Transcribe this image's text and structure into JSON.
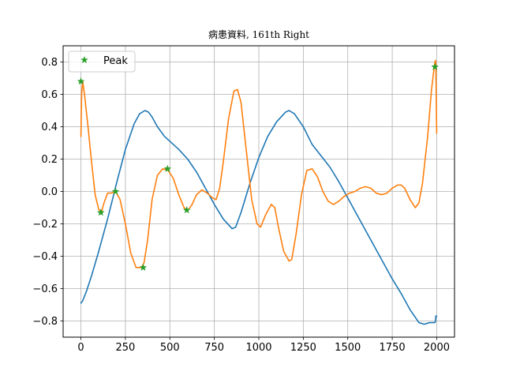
{
  "chart_data": {
    "type": "line",
    "title": "病患資料, 161th Right",
    "xlabel": "",
    "ylabel": "",
    "xlim": [
      -100,
      2100
    ],
    "ylim": [
      -0.9,
      0.9
    ],
    "xticks": [
      0,
      250,
      500,
      750,
      1000,
      1250,
      1500,
      1750,
      2000
    ],
    "yticks": [
      -0.8,
      -0.6,
      -0.4,
      -0.2,
      0.0,
      0.2,
      0.4,
      0.6,
      0.8
    ],
    "xtick_labels": [
      "0",
      "250",
      "500",
      "750",
      "1000",
      "1250",
      "1500",
      "1750",
      "2000"
    ],
    "ytick_labels": [
      "−0.8",
      "−0.6",
      "−0.4",
      "−0.2",
      "0.0",
      "0.2",
      "0.4",
      "0.6",
      "0.8"
    ],
    "grid": true,
    "legend_position": "top-left",
    "series": [
      {
        "color": "#1f77b4",
        "x": [
          0,
          10,
          30,
          60,
          100,
          150,
          200,
          250,
          300,
          330,
          360,
          380,
          400,
          430,
          470,
          500,
          550,
          600,
          650,
          700,
          750,
          800,
          850,
          870,
          900,
          950,
          1000,
          1050,
          1100,
          1150,
          1170,
          1200,
          1250,
          1300,
          1350,
          1400,
          1450,
          1500,
          1550,
          1600,
          1650,
          1700,
          1750,
          1800,
          1850,
          1900,
          1930,
          1960,
          1980,
          1990,
          1993,
          1995,
          2000
        ],
        "y": [
          -0.69,
          -0.675,
          -0.62,
          -0.52,
          -0.37,
          -0.17,
          0.05,
          0.26,
          0.42,
          0.48,
          0.5,
          0.49,
          0.46,
          0.4,
          0.34,
          0.31,
          0.26,
          0.2,
          0.12,
          0.02,
          -0.08,
          -0.17,
          -0.23,
          -0.22,
          -0.13,
          0.05,
          0.21,
          0.34,
          0.43,
          0.49,
          0.5,
          0.48,
          0.4,
          0.29,
          0.22,
          0.15,
          0.06,
          -0.04,
          -0.14,
          -0.24,
          -0.34,
          -0.44,
          -0.54,
          -0.63,
          -0.73,
          -0.81,
          -0.82,
          -0.81,
          -0.81,
          -0.81,
          -0.8,
          -0.77,
          -0.77
        ]
      },
      {
        "color": "#ff7f0e",
        "x": [
          0,
          4,
          10,
          20,
          40,
          60,
          80,
          100,
          115,
          130,
          150,
          170,
          195,
          220,
          250,
          280,
          310,
          340,
          355,
          375,
          400,
          430,
          460,
          490,
          520,
          550,
          580,
          600,
          625,
          650,
          680,
          710,
          740,
          760,
          780,
          800,
          830,
          860,
          880,
          900,
          930,
          960,
          990,
          1010,
          1040,
          1070,
          1090,
          1110,
          1140,
          1170,
          1185,
          1210,
          1240,
          1270,
          1300,
          1330,
          1360,
          1390,
          1420,
          1450,
          1480,
          1510,
          1540,
          1570,
          1600,
          1630,
          1660,
          1690,
          1720,
          1750,
          1780,
          1800,
          1820,
          1850,
          1880,
          1900,
          1920,
          1950,
          1970,
          1985,
          1990,
          1993,
          1995,
          2000
        ],
        "y": [
          0.34,
          0.6,
          0.68,
          0.6,
          0.4,
          0.18,
          -0.02,
          -0.11,
          -0.13,
          -0.07,
          -0.01,
          -0.01,
          0.0,
          -0.05,
          -0.2,
          -0.38,
          -0.47,
          -0.47,
          -0.44,
          -0.3,
          -0.05,
          0.1,
          0.14,
          0.13,
          0.08,
          -0.02,
          -0.1,
          -0.12,
          -0.08,
          -0.02,
          0.01,
          -0.01,
          -0.04,
          -0.05,
          0.02,
          0.18,
          0.45,
          0.62,
          0.63,
          0.55,
          0.25,
          -0.05,
          -0.2,
          -0.22,
          -0.14,
          -0.08,
          -0.1,
          -0.22,
          -0.37,
          -0.43,
          -0.42,
          -0.26,
          -0.02,
          0.13,
          0.14,
          0.09,
          0.0,
          -0.06,
          -0.08,
          -0.06,
          -0.03,
          -0.01,
          0.0,
          0.02,
          0.03,
          0.02,
          -0.01,
          -0.02,
          -0.01,
          0.02,
          0.04,
          0.04,
          0.02,
          -0.05,
          -0.1,
          -0.07,
          0.05,
          0.35,
          0.62,
          0.76,
          0.8,
          0.81,
          0.78,
          0.36
        ]
      },
      {
        "name": "Peak",
        "color": "#2ca02c",
        "marker": "star",
        "x": [
          0,
          112,
          195,
          350,
          487,
          595,
          1990
        ],
        "y": [
          0.68,
          -0.13,
          0.0,
          -0.47,
          0.14,
          -0.115,
          0.77
        ]
      }
    ]
  }
}
